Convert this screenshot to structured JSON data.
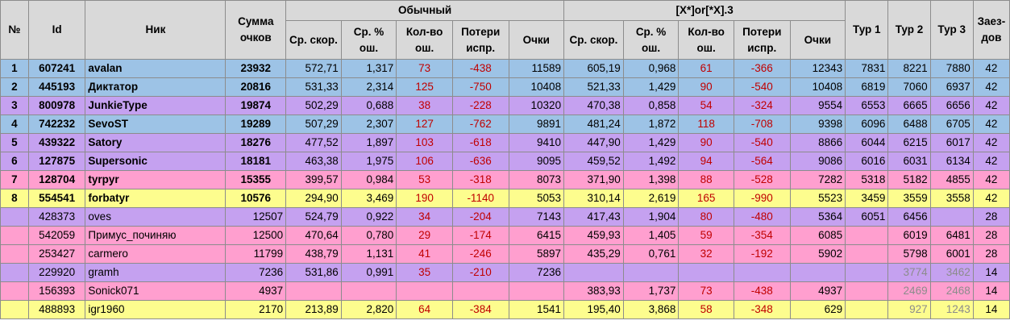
{
  "headers": {
    "num": "№",
    "id": "Id",
    "nick": "Ник",
    "sum": "Сумма очков",
    "group_normal": "Обычный",
    "group_x": "[X*]or[*X].3",
    "avg_speed": "Ср. скор.",
    "avg_err": "Ср. % ош.",
    "err_count": "Кол-во ош.",
    "losses": "Потери испр.",
    "points": "Очки",
    "tour1": "Тур 1",
    "tour2": "Тур 2",
    "tour3": "Тур 3",
    "races": "Заез-дов"
  },
  "rows": [
    {
      "color": "blue",
      "num": "1",
      "id": "607241",
      "nick": "avalan",
      "sum": "23932",
      "n_speed": "572,71",
      "n_err": "1,317",
      "n_count": "73",
      "n_loss": "-438",
      "n_points": "11589",
      "x_speed": "605,19",
      "x_err": "0,968",
      "x_count": "61",
      "x_loss": "-366",
      "x_points": "12343",
      "t1": "7831",
      "t2": "8221",
      "t3": "7880",
      "races": "42"
    },
    {
      "color": "blue",
      "num": "2",
      "id": "445193",
      "nick": "Диктатор",
      "sum": "20816",
      "n_speed": "531,33",
      "n_err": "2,314",
      "n_count": "125",
      "n_loss": "-750",
      "n_points": "10408",
      "x_speed": "521,33",
      "x_err": "1,429",
      "x_count": "90",
      "x_loss": "-540",
      "x_points": "10408",
      "t1": "6819",
      "t2": "7060",
      "t3": "6937",
      "races": "42"
    },
    {
      "color": "violet",
      "num": "3",
      "id": "800978",
      "nick": "JunkieType",
      "sum": "19874",
      "n_speed": "502,29",
      "n_err": "0,688",
      "n_count": "38",
      "n_loss": "-228",
      "n_points": "10320",
      "x_speed": "470,38",
      "x_err": "0,858",
      "x_count": "54",
      "x_loss": "-324",
      "x_points": "9554",
      "t1": "6553",
      "t2": "6665",
      "t3": "6656",
      "races": "42"
    },
    {
      "color": "blue",
      "num": "4",
      "id": "742232",
      "nick": "SevoST",
      "sum": "19289",
      "n_speed": "507,29",
      "n_err": "2,307",
      "n_count": "127",
      "n_loss": "-762",
      "n_points": "9891",
      "x_speed": "481,24",
      "x_err": "1,872",
      "x_count": "118",
      "x_loss": "-708",
      "x_points": "9398",
      "t1": "6096",
      "t2": "6488",
      "t3": "6705",
      "races": "42"
    },
    {
      "color": "violet",
      "num": "5",
      "id": "439322",
      "nick": "Satory",
      "sum": "18276",
      "n_speed": "477,52",
      "n_err": "1,897",
      "n_count": "103",
      "n_loss": "-618",
      "n_points": "9410",
      "x_speed": "447,90",
      "x_err": "1,429",
      "x_count": "90",
      "x_loss": "-540",
      "x_points": "8866",
      "t1": "6044",
      "t2": "6215",
      "t3": "6017",
      "races": "42"
    },
    {
      "color": "violet",
      "num": "6",
      "id": "127875",
      "nick": "Supersonic",
      "sum": "18181",
      "n_speed": "463,38",
      "n_err": "1,975",
      "n_count": "106",
      "n_loss": "-636",
      "n_points": "9095",
      "x_speed": "459,52",
      "x_err": "1,492",
      "x_count": "94",
      "x_loss": "-564",
      "x_points": "9086",
      "t1": "6016",
      "t2": "6031",
      "t3": "6134",
      "races": "42"
    },
    {
      "color": "pink",
      "num": "7",
      "id": "128704",
      "nick": "tyrpyr",
      "sum": "15355",
      "n_speed": "399,57",
      "n_err": "0,984",
      "n_count": "53",
      "n_loss": "-318",
      "n_points": "8073",
      "x_speed": "371,90",
      "x_err": "1,398",
      "x_count": "88",
      "x_loss": "-528",
      "x_points": "7282",
      "t1": "5318",
      "t2": "5182",
      "t3": "4855",
      "races": "42"
    },
    {
      "color": "yellow",
      "num": "8",
      "id": "554541",
      "nick": "forbatyr",
      "sum": "10576",
      "n_speed": "294,90",
      "n_err": "3,469",
      "n_count": "190",
      "n_loss": "-1140",
      "n_points": "5053",
      "x_speed": "310,14",
      "x_err": "2,619",
      "x_count": "165",
      "x_loss": "-990",
      "x_points": "5523",
      "t1": "3459",
      "t2": "3559",
      "t3": "3558",
      "races": "42"
    },
    {
      "color": "violet",
      "num": "",
      "id": "428373",
      "nick": "oves",
      "sum": "12507",
      "n_speed": "524,79",
      "n_err": "0,922",
      "n_count": "34",
      "n_loss": "-204",
      "n_points": "7143",
      "x_speed": "417,43",
      "x_err": "1,904",
      "x_count": "80",
      "x_loss": "-480",
      "x_points": "5364",
      "t1": "6051",
      "t2": "6456",
      "t3": "",
      "races": "28"
    },
    {
      "color": "pink",
      "num": "",
      "id": "542059",
      "nick": "Примус_починяю",
      "sum": "12500",
      "n_speed": "470,64",
      "n_err": "0,780",
      "n_count": "29",
      "n_loss": "-174",
      "n_points": "6415",
      "x_speed": "459,93",
      "x_err": "1,405",
      "x_count": "59",
      "x_loss": "-354",
      "x_points": "6085",
      "t1": "",
      "t2": "6019",
      "t3": "6481",
      "races": "28"
    },
    {
      "color": "pink",
      "num": "",
      "id": "253427",
      "nick": "carmero",
      "sum": "11799",
      "n_speed": "438,79",
      "n_err": "1,131",
      "n_count": "41",
      "n_loss": "-246",
      "n_points": "5897",
      "x_speed": "435,29",
      "x_err": "0,761",
      "x_count": "32",
      "x_loss": "-192",
      "x_points": "5902",
      "t1": "",
      "t2": "5798",
      "t3": "6001",
      "races": "28"
    },
    {
      "color": "violet",
      "num": "",
      "id": "229920",
      "nick": "gramh",
      "sum": "7236",
      "n_speed": "531,86",
      "n_err": "0,991",
      "n_count": "35",
      "n_loss": "-210",
      "n_points": "7236",
      "x_speed": "",
      "x_err": "",
      "x_count": "",
      "x_loss": "",
      "x_points": "",
      "t1": "",
      "t2": "3774",
      "t3": "3462",
      "races": "14",
      "grey_tours": true
    },
    {
      "color": "pink",
      "num": "",
      "id": "156393",
      "nick": "Sonick071",
      "sum": "4937",
      "n_speed": "",
      "n_err": "",
      "n_count": "",
      "n_loss": "",
      "n_points": "",
      "x_speed": "383,93",
      "x_err": "1,737",
      "x_count": "73",
      "x_loss": "-438",
      "x_points": "4937",
      "t1": "",
      "t2": "2469",
      "t3": "2468",
      "races": "14",
      "grey_tours": true
    },
    {
      "color": "yellow",
      "num": "",
      "id": "488893",
      "nick": "igr1960",
      "sum": "2170",
      "n_speed": "213,89",
      "n_err": "2,820",
      "n_count": "64",
      "n_loss": "-384",
      "n_points": "1541",
      "x_speed": "195,40",
      "x_err": "3,868",
      "x_count": "58",
      "x_loss": "-348",
      "x_points": "629",
      "t1": "",
      "t2": "927",
      "t3": "1243",
      "races": "14",
      "grey_tours": true
    }
  ]
}
